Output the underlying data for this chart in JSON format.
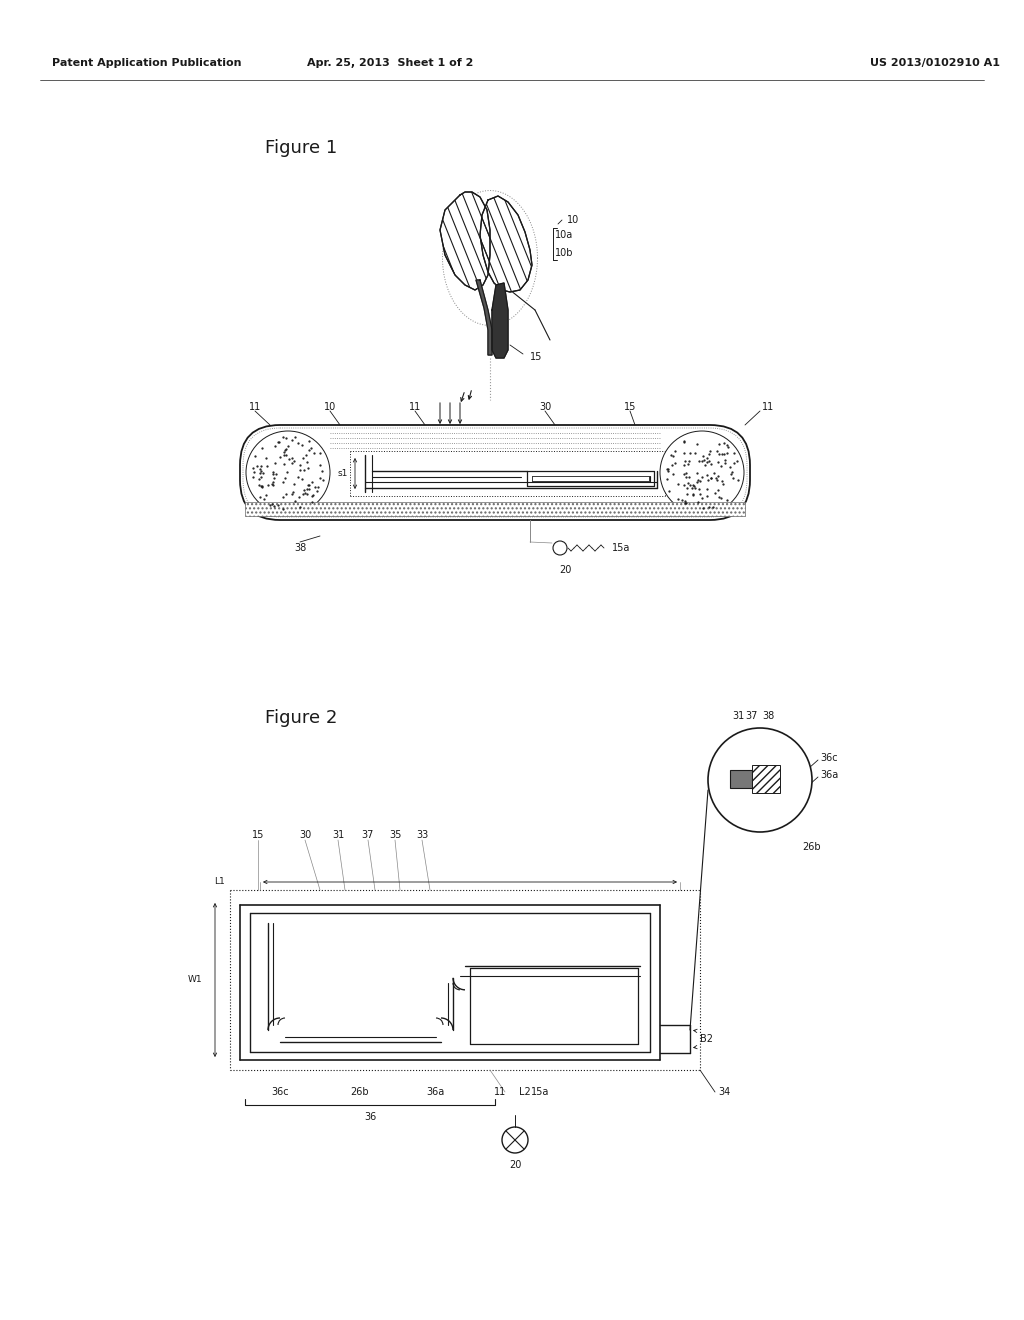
{
  "bg_color": "#ffffff",
  "header_left": "Patent Application Publication",
  "header_mid": "Apr. 25, 2013  Sheet 1 of 2",
  "header_right": "US 2013/0102910 A1",
  "fig1_title": "Figure 1",
  "fig2_title": "Figure 2",
  "line_color": "#1a1a1a",
  "text_color": "#1a1a1a"
}
